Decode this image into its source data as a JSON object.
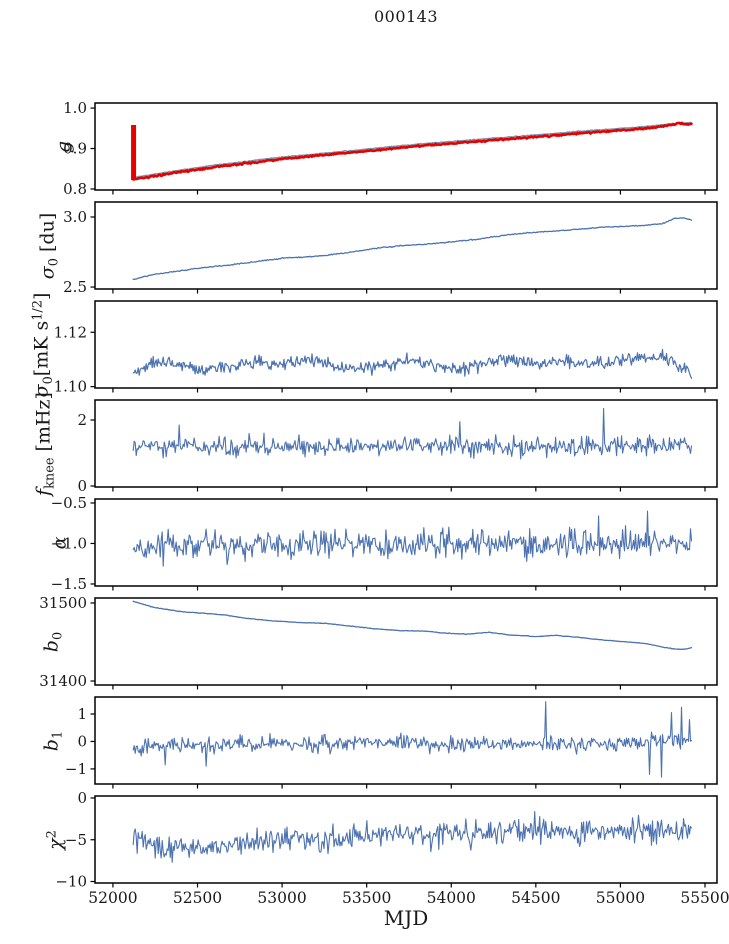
{
  "title": "000143",
  "colors": {
    "blue": "#4c72b0",
    "red": "#e60000",
    "gray_fit": "#7e93ab",
    "axis": "#000000",
    "background": "#ffffff"
  },
  "x_axis": {
    "label": "MJD",
    "lim": [
      51894,
      55571
    ],
    "ticks": [
      {
        "v": 52000,
        "label": "52000"
      },
      {
        "v": 52500,
        "label": "52500"
      },
      {
        "v": 53000,
        "label": "53000"
      },
      {
        "v": 53500,
        "label": "53500"
      },
      {
        "v": 54000,
        "label": "54000"
      },
      {
        "v": 54500,
        "label": "54500"
      },
      {
        "v": 55000,
        "label": "55000"
      },
      {
        "v": 55500,
        "label": "55500"
      }
    ]
  },
  "chart_data": [
    {
      "id": "g",
      "type": "line",
      "ylabel_segments": [
        {
          "text": "g",
          "style": "it"
        }
      ],
      "ylim": [
        0.7975,
        1.0125
      ],
      "yticks": [
        {
          "v": 1.0,
          "label": "1.0"
        },
        {
          "v": 0.9,
          "label": "0.9"
        },
        {
          "v": 0.8,
          "label": "0.8"
        }
      ],
      "series": [
        {
          "name": "gain-fit",
          "color": "gray_fit",
          "lw": 1.7,
          "noise": 0.0006,
          "n": 450,
          "keypoints": [
            [
              52120,
              0.8285
            ],
            [
              52250,
              0.8365
            ],
            [
              52400,
              0.8465
            ],
            [
              52600,
              0.8585
            ],
            [
              52800,
              0.8685
            ],
            [
              53000,
              0.8785
            ],
            [
              53200,
              0.8865
            ],
            [
              53400,
              0.894
            ],
            [
              53600,
              0.9025
            ],
            [
              53800,
              0.9105
            ],
            [
              54000,
              0.917
            ],
            [
              54200,
              0.9235
            ],
            [
              54400,
              0.93
            ],
            [
              54600,
              0.9365
            ],
            [
              54800,
              0.9435
            ],
            [
              55000,
              0.9495
            ],
            [
              55100,
              0.9525
            ],
            [
              55200,
              0.956
            ],
            [
              55300,
              0.9615
            ],
            [
              55420,
              0.9635
            ]
          ]
        },
        {
          "name": "gain-data",
          "color": "red",
          "lw": 2.6,
          "noise": 0.0012,
          "n": 520,
          "keypoints": [
            [
              52120,
              0.824
            ],
            [
              52250,
              0.832
            ],
            [
              52400,
              0.842
            ],
            [
              52600,
              0.854
            ],
            [
              52800,
              0.864
            ],
            [
              53000,
              0.874
            ],
            [
              53200,
              0.882
            ],
            [
              53400,
              0.8895
            ],
            [
              53600,
              0.898
            ],
            [
              53800,
              0.906
            ],
            [
              54000,
              0.9125
            ],
            [
              54200,
              0.919
            ],
            [
              54400,
              0.9255
            ],
            [
              54600,
              0.932
            ],
            [
              54800,
              0.939
            ],
            [
              55000,
              0.945
            ],
            [
              55100,
              0.948
            ],
            [
              55200,
              0.952
            ],
            [
              55300,
              0.958
            ],
            [
              55340,
              0.9635
            ],
            [
              55380,
              0.9595
            ],
            [
              55420,
              0.9615
            ]
          ],
          "spike_segment": {
            "x": 52122,
            "y0": 0.822,
            "y1": 0.958,
            "lw": 5
          }
        }
      ]
    },
    {
      "id": "sigma0_du",
      "type": "line",
      "ylabel_segments": [
        {
          "text": "σ",
          "style": "it"
        },
        {
          "text": "0",
          "style": "sub"
        },
        {
          "text": " [du]",
          "style": "normal"
        }
      ],
      "ylim": [
        2.486,
        3.107
      ],
      "yticks": [
        {
          "v": 3.0,
          "label": "3.0"
        },
        {
          "v": 2.5,
          "label": "2.5"
        }
      ],
      "series": [
        {
          "name": "sigma0-du",
          "color": "blue",
          "lw": 1.3,
          "noise": 0.0022,
          "n": 480,
          "keypoints": [
            [
              52120,
              2.556
            ],
            [
              52250,
              2.592
            ],
            [
              52400,
              2.617
            ],
            [
              52550,
              2.64
            ],
            [
              52700,
              2.66
            ],
            [
              52850,
              2.682
            ],
            [
              53000,
              2.705
            ],
            [
              53100,
              2.712
            ],
            [
              53250,
              2.724
            ],
            [
              53400,
              2.748
            ],
            [
              53550,
              2.776
            ],
            [
              53700,
              2.795
            ],
            [
              53850,
              2.805
            ],
            [
              54000,
              2.822
            ],
            [
              54150,
              2.84
            ],
            [
              54300,
              2.868
            ],
            [
              54450,
              2.886
            ],
            [
              54600,
              2.898
            ],
            [
              54750,
              2.912
            ],
            [
              54900,
              2.928
            ],
            [
              55050,
              2.935
            ],
            [
              55150,
              2.941
            ],
            [
              55250,
              2.953
            ],
            [
              55320,
              2.99
            ],
            [
              55370,
              2.995
            ],
            [
              55420,
              2.98
            ]
          ]
        }
      ]
    },
    {
      "id": "sigma0_mK",
      "type": "line",
      "ylabel_segments": [
        {
          "text": "σ",
          "style": "it"
        },
        {
          "text": "0",
          "style": "sub"
        },
        {
          "text": "[mK s",
          "style": "normal"
        },
        {
          "text": "1/2",
          "style": "sup"
        },
        {
          "text": "]",
          "style": "normal"
        }
      ],
      "ylim": [
        1.0995,
        1.1315
      ],
      "yticks": [
        {
          "v": 1.12,
          "label": "1.12"
        },
        {
          "v": 1.1,
          "label": "1.10"
        }
      ],
      "series": [
        {
          "name": "sigma0-mK",
          "color": "blue",
          "lw": 1.2,
          "noise": 0.0013,
          "n": 560,
          "keypoints": [
            [
              52120,
              1.1045
            ],
            [
              52250,
              1.109
            ],
            [
              52400,
              1.1085
            ],
            [
              52550,
              1.106
            ],
            [
              52700,
              1.1075
            ],
            [
              52850,
              1.1095
            ],
            [
              53000,
              1.108
            ],
            [
              53150,
              1.1105
            ],
            [
              53300,
              1.107
            ],
            [
              53450,
              1.1065
            ],
            [
              53600,
              1.108
            ],
            [
              53750,
              1.11
            ],
            [
              53900,
              1.1075
            ],
            [
              54050,
              1.106
            ],
            [
              54200,
              1.1085
            ],
            [
              54350,
              1.11
            ],
            [
              54500,
              1.1085
            ],
            [
              54650,
              1.1095
            ],
            [
              54800,
              1.1085
            ],
            [
              54950,
              1.109
            ],
            [
              55100,
              1.1105
            ],
            [
              55250,
              1.1115
            ],
            [
              55350,
              1.108
            ],
            [
              55420,
              1.1045
            ]
          ]
        }
      ]
    },
    {
      "id": "f_knee",
      "type": "line",
      "ylabel_segments": [
        {
          "text": "f",
          "style": "it"
        },
        {
          "text": "knee",
          "style": "sub"
        },
        {
          "text": " [mHz]",
          "style": "normal"
        }
      ],
      "ylim": [
        -0.03,
        2.606
      ],
      "yticks": [
        {
          "v": 2,
          "label": "2"
        },
        {
          "v": 0,
          "label": "0"
        }
      ],
      "series": [
        {
          "name": "f-knee",
          "color": "blue",
          "lw": 1.1,
          "noise": 0.16,
          "n": 560,
          "keypoints": [
            [
              52120,
              1.18
            ],
            [
              53000,
              1.2
            ],
            [
              54000,
              1.22
            ],
            [
              55000,
              1.2
            ],
            [
              55420,
              1.25
            ]
          ],
          "spikes": [
            [
              52390,
              1.85
            ],
            [
              54050,
              1.95
            ],
            [
              54900,
              2.35
            ]
          ]
        }
      ]
    },
    {
      "id": "alpha",
      "type": "line",
      "ylabel_segments": [
        {
          "text": "α",
          "style": "it"
        }
      ],
      "ylim": [
        -1.525,
        -0.451
      ],
      "yticks": [
        {
          "v": -0.5,
          "label": "−0.5"
        },
        {
          "v": -1.0,
          "label": "−1.0"
        },
        {
          "v": -1.5,
          "label": "−1.5"
        }
      ],
      "series": [
        {
          "name": "alpha",
          "color": "blue",
          "lw": 1.1,
          "noise": 0.1,
          "n": 560,
          "keypoints": [
            [
              52120,
              -1.05
            ],
            [
              52600,
              -1.03
            ],
            [
              53200,
              -1.02
            ],
            [
              54000,
              -1.02
            ],
            [
              54800,
              -1.0
            ],
            [
              55420,
              -1.0
            ]
          ],
          "spikes": [
            [
              52300,
              -1.28
            ],
            [
              54870,
              -0.66
            ],
            [
              55160,
              -0.6
            ]
          ]
        }
      ]
    },
    {
      "id": "b0",
      "type": "line",
      "ylabel_segments": [
        {
          "text": "b",
          "style": "it"
        },
        {
          "text": "0",
          "style": "sub"
        }
      ],
      "ylim": [
        31394.9,
        31506.4
      ],
      "yticks": [
        {
          "v": 31500,
          "label": "31500"
        },
        {
          "v": 31400,
          "label": "31400"
        }
      ],
      "series": [
        {
          "name": "b0",
          "color": "blue",
          "lw": 1.3,
          "noise": 0.22,
          "n": 480,
          "keypoints": [
            [
              52120,
              31502
            ],
            [
              52250,
              31494
            ],
            [
              52400,
              31489
            ],
            [
              52550,
              31486.5
            ],
            [
              52650,
              31485
            ],
            [
              52800,
              31480
            ],
            [
              52950,
              31477
            ],
            [
              53100,
              31475
            ],
            [
              53250,
              31474
            ],
            [
              53400,
              31470.5
            ],
            [
              53550,
              31467
            ],
            [
              53700,
              31464.5
            ],
            [
              53850,
              31464
            ],
            [
              53950,
              31461.5
            ],
            [
              54100,
              31460
            ],
            [
              54220,
              31462.5
            ],
            [
              54350,
              31459
            ],
            [
              54500,
              31457
            ],
            [
              54620,
              31458.5
            ],
            [
              54750,
              31456
            ],
            [
              54900,
              31452.5
            ],
            [
              55050,
              31450
            ],
            [
              55150,
              31448
            ],
            [
              55250,
              31443.5
            ],
            [
              55320,
              31441
            ],
            [
              55370,
              31440.5
            ],
            [
              55420,
              31442.5
            ]
          ]
        }
      ]
    },
    {
      "id": "b1",
      "type": "line",
      "ylabel_segments": [
        {
          "text": "b",
          "style": "it"
        },
        {
          "text": "1",
          "style": "sub"
        }
      ],
      "ylim": [
        -1.55,
        1.62
      ],
      "yticks": [
        {
          "v": 1,
          "label": "1"
        },
        {
          "v": 0,
          "label": "0"
        },
        {
          "v": -1,
          "label": "−1"
        }
      ],
      "series": [
        {
          "name": "b1",
          "color": "blue",
          "lw": 1.1,
          "noise": 0.17,
          "n": 560,
          "keypoints": [
            [
              52120,
              -0.18
            ],
            [
              52400,
              -0.15
            ],
            [
              52700,
              -0.12
            ],
            [
              53000,
              -0.1
            ],
            [
              53300,
              -0.08
            ],
            [
              53500,
              -0.05
            ],
            [
              53650,
              0.02
            ],
            [
              53800,
              -0.1
            ],
            [
              54000,
              -0.12
            ],
            [
              54300,
              -0.08
            ],
            [
              54600,
              -0.1
            ],
            [
              54900,
              -0.12
            ],
            [
              55100,
              -0.05
            ],
            [
              55250,
              0.0
            ],
            [
              55420,
              0.05
            ]
          ],
          "spikes": [
            [
              52310,
              -0.85
            ],
            [
              52550,
              -0.9
            ],
            [
              54560,
              1.45
            ],
            [
              55170,
              -1.2
            ],
            [
              55240,
              -1.3
            ],
            [
              55300,
              1.05
            ],
            [
              55360,
              1.25
            ],
            [
              55410,
              0.8
            ]
          ]
        }
      ]
    },
    {
      "id": "chi2",
      "type": "line",
      "ylabel_segments": [
        {
          "text": "χ",
          "style": "it"
        },
        {
          "text": "2",
          "style": "sup"
        }
      ],
      "ylim": [
        -10.18,
        0.24
      ],
      "yticks": [
        {
          "v": 0,
          "label": "0"
        },
        {
          "v": -5,
          "label": "−5"
        },
        {
          "v": -10,
          "label": "−10"
        }
      ],
      "series": [
        {
          "name": "chi2",
          "color": "blue",
          "lw": 1.1,
          "noise": 0.85,
          "n": 560,
          "keypoints": [
            [
              52120,
              -4.6
            ],
            [
              52250,
              -5.6
            ],
            [
              52350,
              -6.1
            ],
            [
              52500,
              -6.0
            ],
            [
              52650,
              -5.9
            ],
            [
              52800,
              -5.4
            ],
            [
              52950,
              -5.1
            ],
            [
              53100,
              -4.8
            ],
            [
              53250,
              -4.9
            ],
            [
              53400,
              -4.7
            ],
            [
              53550,
              -4.6
            ],
            [
              53700,
              -4.4
            ],
            [
              53850,
              -4.5
            ],
            [
              54000,
              -4.1
            ],
            [
              54150,
              -4.3
            ],
            [
              54300,
              -3.9
            ],
            [
              54450,
              -3.8
            ],
            [
              54600,
              -4.0
            ],
            [
              54750,
              -4.2
            ],
            [
              54900,
              -4.0
            ],
            [
              55050,
              -3.9
            ],
            [
              55200,
              -4.0
            ],
            [
              55350,
              -3.9
            ],
            [
              55420,
              -4.0
            ]
          ]
        }
      ]
    }
  ]
}
